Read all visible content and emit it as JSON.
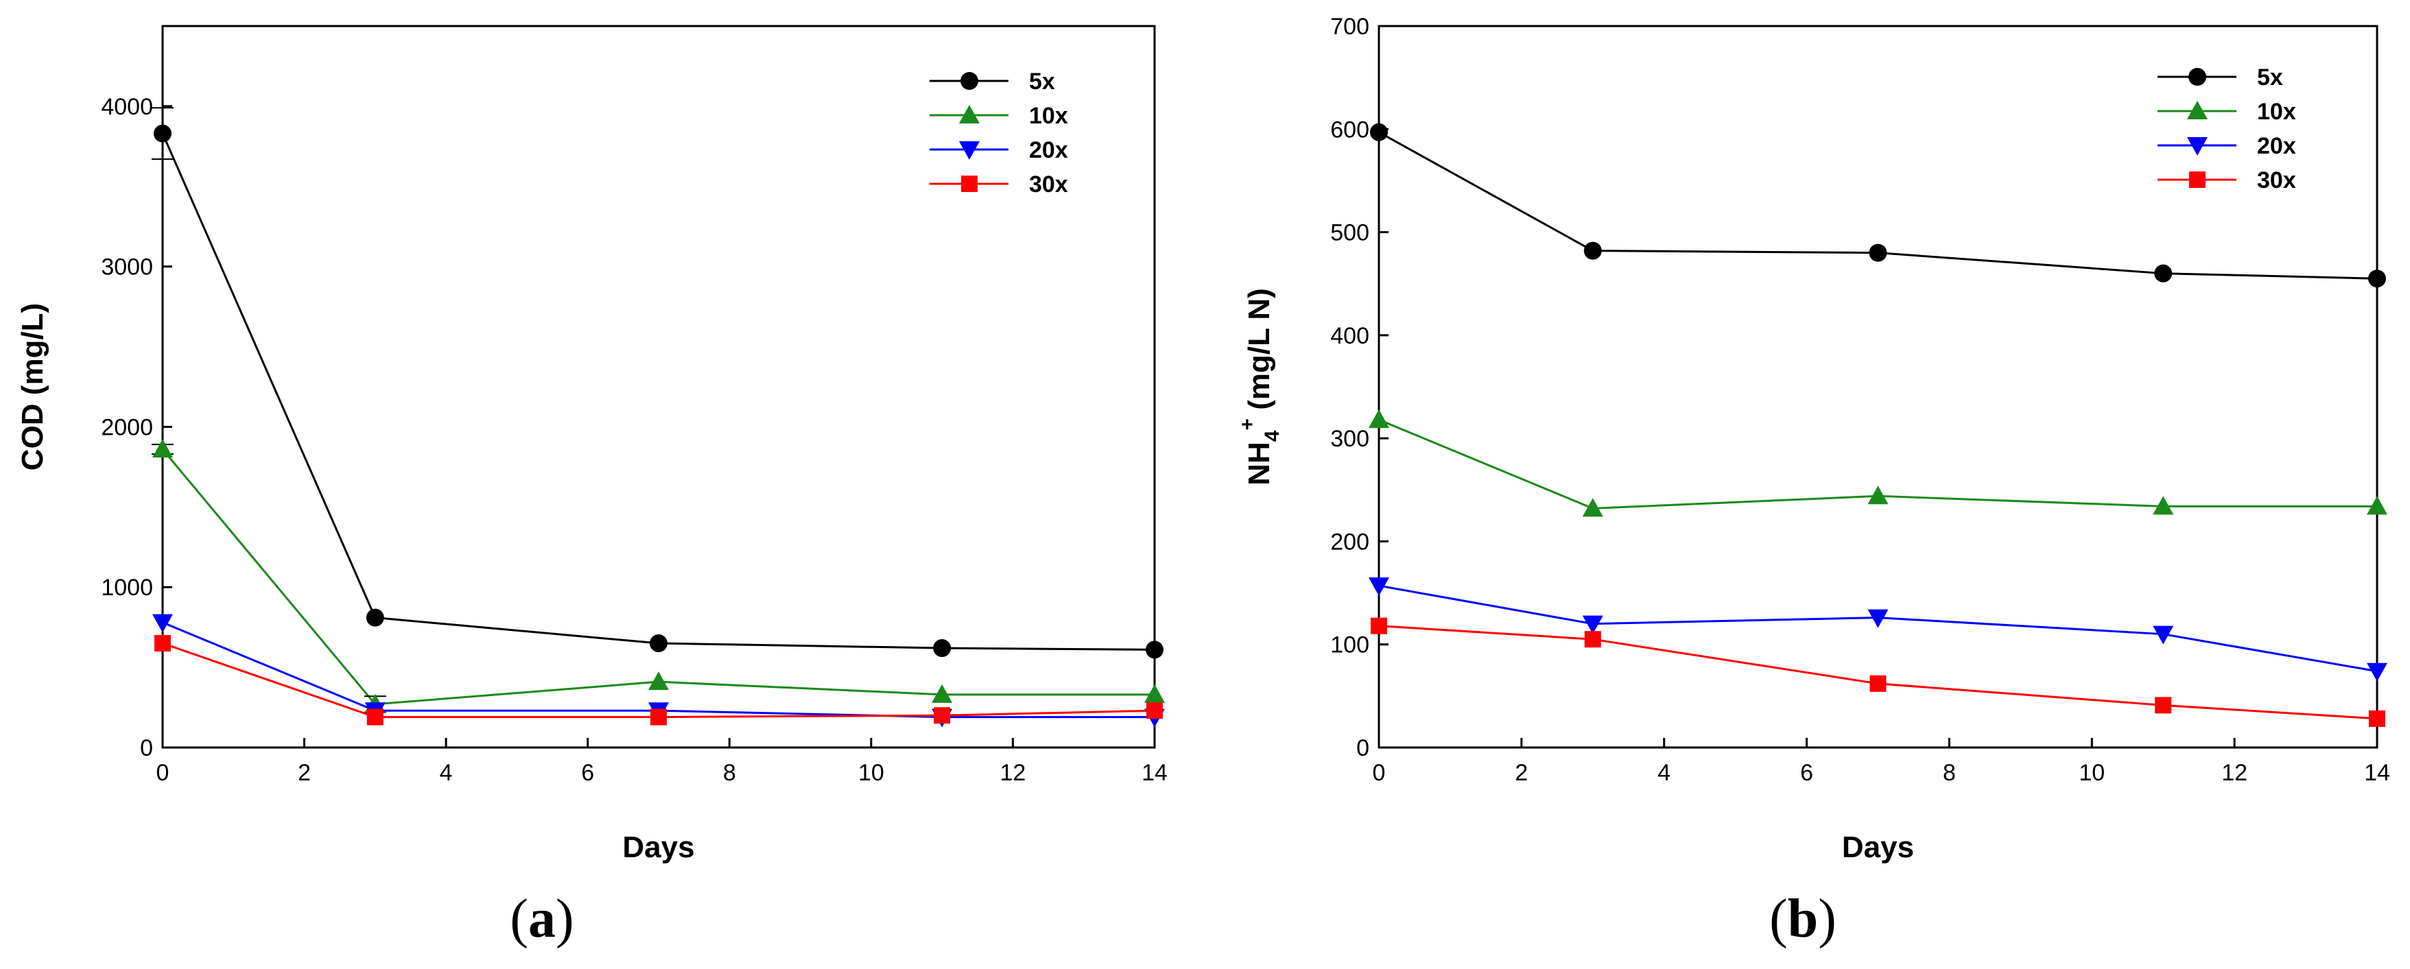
{
  "charts": [
    {
      "id": "a",
      "type": "line",
      "panel_label": "a",
      "xlabel": "Days",
      "ylabel": "COD (mg/L)",
      "xlim": [
        0,
        14
      ],
      "ylim": [
        0,
        4500
      ],
      "xticks": [
        0,
        2,
        4,
        6,
        8,
        10,
        12,
        14
      ],
      "yticks": [
        0,
        1000,
        2000,
        3000,
        4000
      ],
      "x": [
        0,
        3,
        7,
        11,
        14
      ],
      "legend_position": "top-right",
      "series": [
        {
          "name": "5x",
          "color": "#000000",
          "marker": "circle",
          "values": [
            3830,
            810,
            650,
            620,
            610
          ],
          "errors": [
            160,
            0,
            0,
            0,
            0
          ]
        },
        {
          "name": "10x",
          "color": "#1a8a1a",
          "marker": "triangle-up",
          "values": [
            1860,
            270,
            410,
            330,
            330
          ],
          "errors": [
            30,
            50,
            0,
            0,
            0
          ]
        },
        {
          "name": "20x",
          "color": "#0000ff",
          "marker": "triangle-down",
          "values": [
            780,
            230,
            230,
            190,
            190
          ],
          "errors": [
            0,
            0,
            0,
            0,
            0
          ]
        },
        {
          "name": "30x",
          "color": "#ff0000",
          "marker": "square",
          "values": [
            650,
            190,
            190,
            200,
            230
          ],
          "errors": [
            0,
            0,
            0,
            0,
            0
          ]
        }
      ]
    },
    {
      "id": "b",
      "type": "line",
      "panel_label": "b",
      "xlabel": "Days",
      "ylabel": "NH4+ (mg/L N)",
      "ylabel_parts": {
        "base": "NH",
        "sub": "4",
        "sup": "+",
        "rest": " (mg/L N)"
      },
      "xlim": [
        0,
        14
      ],
      "ylim": [
        0,
        700
      ],
      "xticks": [
        0,
        2,
        4,
        6,
        8,
        10,
        12,
        14
      ],
      "yticks": [
        0,
        100,
        200,
        300,
        400,
        500,
        600,
        700
      ],
      "x": [
        0,
        3,
        7,
        11,
        14
      ],
      "legend_position": "top-right",
      "series": [
        {
          "name": "5x",
          "color": "#000000",
          "marker": "circle",
          "values": [
            597,
            482,
            480,
            460,
            455
          ]
        },
        {
          "name": "10x",
          "color": "#1a8a1a",
          "marker": "triangle-up",
          "values": [
            318,
            232,
            244,
            234,
            234
          ]
        },
        {
          "name": "20x",
          "color": "#0000ff",
          "marker": "triangle-down",
          "values": [
            157,
            120,
            126,
            110,
            74
          ]
        },
        {
          "name": "30x",
          "color": "#ff0000",
          "marker": "square",
          "values": [
            118,
            105,
            62,
            41,
            28
          ]
        }
      ]
    }
  ]
}
